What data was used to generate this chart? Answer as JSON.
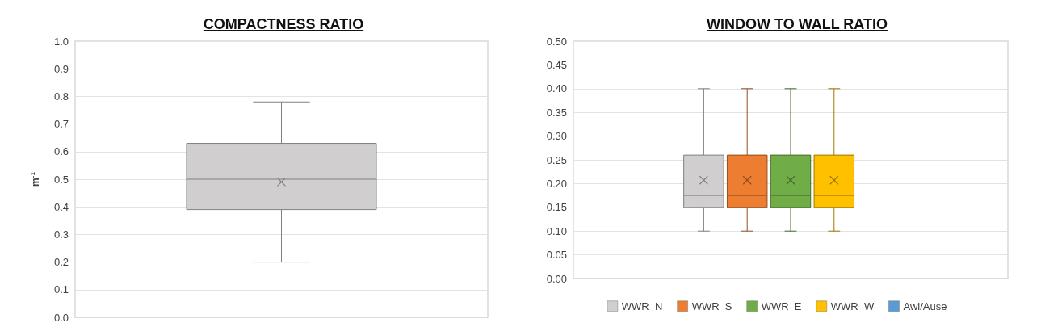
{
  "chart_data": [
    {
      "type": "box",
      "title": "COMPACTNESS RATIO",
      "ylabel": "m$^{-1}$",
      "categories": [
        null
      ],
      "series": [
        {
          "color": "#d0cecf",
          "boxes": [
            {
              "low": 0.2,
              "q1": 0.39,
              "median": 0.5,
              "q3": 0.63,
              "high": 0.78,
              "mean": 0.49
            }
          ]
        }
      ],
      "ylim": [
        0,
        1
      ],
      "yticks": [
        {
          "value": 0,
          "label": "0.0"
        },
        {
          "value": 0.1,
          "label": "0.1"
        },
        {
          "value": 0.2,
          "label": "0.2"
        },
        {
          "value": 0.3,
          "label": "0.3"
        },
        {
          "value": 0.4,
          "label": "0.4"
        },
        {
          "value": 0.5,
          "label": "0.5"
        },
        {
          "value": 0.6,
          "label": "0.6"
        },
        {
          "value": 0.7,
          "label": "0.7"
        },
        {
          "value": 0.8,
          "label": "0.8"
        },
        {
          "value": 0.9,
          "label": "0.9"
        },
        {
          "value": 1,
          "label": "1.0"
        }
      ],
      "grid": "y",
      "marker": "cross"
    },
    {
      "type": "box",
      "title": "WINDOW TO WALL RATIO",
      "categories": [
        null
      ],
      "series": [
        {
          "name": "WWR_N",
          "color": "#d0cecf",
          "boxes": [
            {
              "low": 0.1,
              "q1": 0.15,
              "median": 0.175,
              "q3": 0.26,
              "high": 0.4,
              "mean": 0.207
            }
          ]
        },
        {
          "name": "WWR_S",
          "color": "#ed7d31",
          "boxes": [
            {
              "low": 0.1,
              "q1": 0.15,
              "median": 0.175,
              "q3": 0.26,
              "high": 0.4,
              "mean": 0.207
            }
          ]
        },
        {
          "name": "WWR_E",
          "color": "#70ad47",
          "boxes": [
            {
              "low": 0.1,
              "q1": 0.15,
              "median": 0.175,
              "q3": 0.26,
              "high": 0.4,
              "mean": 0.207
            }
          ]
        },
        {
          "name": "WWR_W",
          "color": "#ffc000",
          "boxes": [
            {
              "low": 0.1,
              "q1": 0.15,
              "median": 0.175,
              "q3": 0.26,
              "high": 0.4,
              "mean": 0.207
            }
          ]
        },
        {
          "name": "Awi/Ause",
          "color": "#5b9bd5",
          "boxes": [
            null
          ]
        }
      ],
      "ylim": [
        0,
        0.5
      ],
      "yticks": [
        {
          "value": 0,
          "label": "0.00"
        },
        {
          "value": 0.05,
          "label": "0.05"
        },
        {
          "value": 0.1,
          "label": "0.10"
        },
        {
          "value": 0.15,
          "label": "0.15"
        },
        {
          "value": 0.2,
          "label": "0.20"
        },
        {
          "value": 0.25,
          "label": "0.25"
        },
        {
          "value": 0.3,
          "label": "0.30"
        },
        {
          "value": 0.35,
          "label": "0.35"
        },
        {
          "value": 0.4,
          "label": "0.40"
        },
        {
          "value": 0.45,
          "label": "0.45"
        },
        {
          "value": 0.5,
          "label": "0.50"
        }
      ],
      "grid": "y",
      "legend": "bottom",
      "marker": "cross"
    }
  ]
}
